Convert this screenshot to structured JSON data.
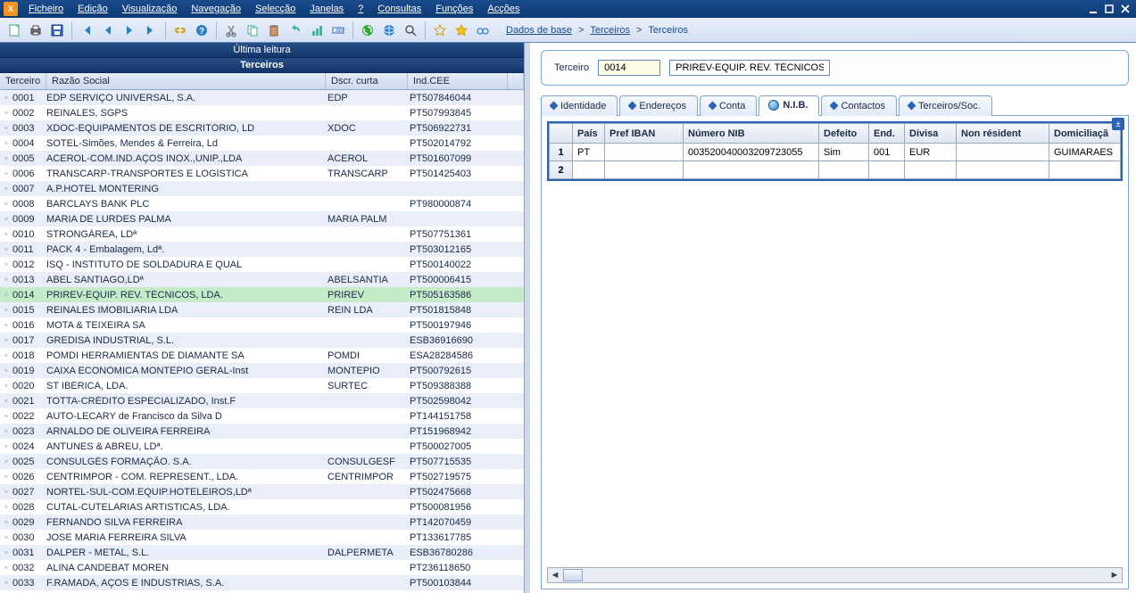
{
  "menu": {
    "items": [
      "Ficheiro",
      "Edição",
      "Visualização",
      "Navegação",
      "Selecção",
      "Janelas",
      "?",
      "Consultas",
      "Funções",
      "Acções"
    ]
  },
  "toolbar": {
    "icons": [
      {
        "name": "new-icon"
      },
      {
        "name": "print-icon"
      },
      {
        "name": "save-icon"
      },
      {
        "sep": true
      },
      {
        "name": "nav-first-icon"
      },
      {
        "name": "nav-prev-icon"
      },
      {
        "name": "nav-next-icon"
      },
      {
        "name": "nav-last-icon"
      },
      {
        "sep": true
      },
      {
        "name": "link-icon"
      },
      {
        "name": "help-icon"
      },
      {
        "sep": true
      },
      {
        "name": "cut-icon"
      },
      {
        "name": "copy-icon"
      },
      {
        "name": "paste-icon"
      },
      {
        "name": "undo-icon"
      },
      {
        "name": "chart-icon"
      },
      {
        "name": "field-icon"
      },
      {
        "sep": true
      },
      {
        "name": "refresh-green-icon"
      },
      {
        "name": "world-icon"
      },
      {
        "name": "search-icon"
      },
      {
        "sep": true
      },
      {
        "name": "star-outline-icon"
      },
      {
        "name": "star-fill-icon"
      },
      {
        "name": "glasses-icon"
      }
    ],
    "breadcrumb": [
      "Dados de base",
      "Terceiros",
      "Terceiros"
    ]
  },
  "leftPane": {
    "header1": "Última leitura",
    "header2": "Terceiros",
    "columns": {
      "id": "Terceiro",
      "name": "Razão Social",
      "dscr": "Dscr. curta",
      "cee": "Ind.CEE"
    },
    "selectedId": "0014",
    "rows": [
      {
        "id": "0001",
        "name": "EDP SERVIÇO UNIVERSAL, S.A.",
        "dscr": "EDP",
        "cee": "PT507846044"
      },
      {
        "id": "0002",
        "name": "REINALES, SGPS",
        "dscr": "",
        "cee": "PT507993845"
      },
      {
        "id": "0003",
        "name": "XDOC-EQUIPAMENTOS DE ESCRITÓRIO, LD",
        "dscr": "XDOC",
        "cee": "PT506922731"
      },
      {
        "id": "0004",
        "name": "SOTEL-Simões, Mendes & Ferreira, Ld",
        "dscr": "",
        "cee": "PT502014792"
      },
      {
        "id": "0005",
        "name": "ACEROL-COM.IND.AÇOS INOX.,UNIP.,LDA",
        "dscr": "ACEROL",
        "cee": "PT501607099"
      },
      {
        "id": "0006",
        "name": "TRANSCARP-TRANSPORTES E LOGÍSTICA",
        "dscr": "TRANSCARP",
        "cee": "PT501425403"
      },
      {
        "id": "0007",
        "name": "A.P.HOTEL MONTERING",
        "dscr": "",
        "cee": ""
      },
      {
        "id": "0008",
        "name": "BARCLAYS BANK PLC",
        "dscr": "",
        "cee": "PT980000874"
      },
      {
        "id": "0009",
        "name": "MARIA DE LURDES PALMA",
        "dscr": "MARIA PALM",
        "cee": ""
      },
      {
        "id": "0010",
        "name": "STRONGÁREA, LDª",
        "dscr": "",
        "cee": "PT507751361"
      },
      {
        "id": "0011",
        "name": "PACK  4 - Embalagem, Ldª.",
        "dscr": "",
        "cee": "PT503012165"
      },
      {
        "id": "0012",
        "name": "ISQ - INSTITUTO DE SOLDADURA E QUAL",
        "dscr": "",
        "cee": "PT500140022"
      },
      {
        "id": "0013",
        "name": "ABEL SANTIAGO,LDª",
        "dscr": "ABELSANTIA",
        "cee": "PT500006415"
      },
      {
        "id": "0014",
        "name": "PRIREV-EQUIP. REV. TÉCNICOS, LDA.",
        "dscr": "PRIREV",
        "cee": "PT505163586"
      },
      {
        "id": "0015",
        "name": "REINALES IMOBILIARIA LDA",
        "dscr": "REIN LDA",
        "cee": "PT501815848"
      },
      {
        "id": "0016",
        "name": "MOTA & TEIXEIRA SA",
        "dscr": "",
        "cee": "PT500197946"
      },
      {
        "id": "0017",
        "name": "GREDISA INDUSTRIAL, S.L.",
        "dscr": "",
        "cee": "ESB36916690"
      },
      {
        "id": "0018",
        "name": "POMDI HERRAMIENTAS DE DIAMANTE SA",
        "dscr": "POMDI",
        "cee": "ESA28284586"
      },
      {
        "id": "0019",
        "name": "CAIXA ECONÓMICA MONTEPIO GERAL-Inst",
        "dscr": "MONTEPIO",
        "cee": "PT500792615"
      },
      {
        "id": "0020",
        "name": "ST IBÉRICA, LDA.",
        "dscr": "SURTEC",
        "cee": "PT509388388"
      },
      {
        "id": "0021",
        "name": "TOTTA-CRÉDITO ESPECIALIZADO, Inst.F",
        "dscr": "",
        "cee": "PT502598042"
      },
      {
        "id": "0022",
        "name": "AUTO-LECARY de Francisco da Silva D",
        "dscr": "",
        "cee": "PT144151758"
      },
      {
        "id": "0023",
        "name": "ARNALDO DE OLIVEIRA FERREIRA",
        "dscr": "",
        "cee": "PT151968942"
      },
      {
        "id": "0024",
        "name": "ANTUNES & ABREU, LDª.",
        "dscr": "",
        "cee": "PT500027005"
      },
      {
        "id": "0025",
        "name": "CONSULGÉS FORMAÇÃO. S.A.",
        "dscr": "CONSULGESF",
        "cee": "PT507715535"
      },
      {
        "id": "0026",
        "name": "CENTRIMPOR - COM. REPRESENT., LDA.",
        "dscr": "CENTRIMPOR",
        "cee": "PT502719575"
      },
      {
        "id": "0027",
        "name": "NORTEL-SUL-COM.EQUIP.HOTELEIROS,LDª",
        "dscr": "",
        "cee": "PT502475668"
      },
      {
        "id": "0028",
        "name": "CUTAL-CUTELARIAS ARTISTICAS, LDA.",
        "dscr": "",
        "cee": "PT500081956"
      },
      {
        "id": "0029",
        "name": "FERNANDO SILVA FERREIRA",
        "dscr": "",
        "cee": "PT142070459"
      },
      {
        "id": "0030",
        "name": "JOSE MARIA FERREIRA SILVA",
        "dscr": "",
        "cee": "PT133617785"
      },
      {
        "id": "0031",
        "name": "DALPER - METAL, S.L.",
        "dscr": "DALPERMETA",
        "cee": "ESB36780286"
      },
      {
        "id": "0032",
        "name": "ALINA CANDEBAT MOREN",
        "dscr": "",
        "cee": "PT236118650"
      },
      {
        "id": "0033",
        "name": "F.RAMADA, AÇOS E INDUSTRIAS, S.A.",
        "dscr": "",
        "cee": "PT500103844"
      }
    ]
  },
  "rightPane": {
    "idLabel": "Terceiro",
    "code": "0014",
    "desc": "PRIREV-EQUIP. REV. TÉCNICOS,",
    "tabs": [
      {
        "label": "Identidade",
        "active": false
      },
      {
        "label": "Endereços",
        "active": false
      },
      {
        "label": "Conta",
        "active": false
      },
      {
        "label": "N.I.B.",
        "active": true,
        "globe": true
      },
      {
        "label": "Contactos",
        "active": false
      },
      {
        "label": "Terceiros/Soc.",
        "active": false
      }
    ],
    "grid": {
      "columns": [
        {
          "key": "pais",
          "label": "País",
          "width": 36
        },
        {
          "key": "prefiban",
          "label": "Pref IBAN",
          "width": 88
        },
        {
          "key": "nib",
          "label": "Número NIB",
          "width": 152
        },
        {
          "key": "defeito",
          "label": "Defeito",
          "width": 56
        },
        {
          "key": "end",
          "label": "End.",
          "width": 40
        },
        {
          "key": "divisa",
          "label": "Divisa",
          "width": 58
        },
        {
          "key": "nonres",
          "label": "Non résident",
          "width": 104
        },
        {
          "key": "domic",
          "label": "Domiciliaçã",
          "width": 80
        }
      ],
      "rows": [
        {
          "pais": "PT",
          "prefiban": "",
          "nib": "003520040003209723055",
          "defeito": "Sim",
          "end": "001",
          "divisa": "EUR",
          "nonres": "",
          "domic": "GUIMARAES"
        },
        {
          "pais": "",
          "prefiban": "",
          "nib": "",
          "defeito": "",
          "end": "",
          "divisa": "",
          "nonres": "",
          "domic": ""
        }
      ]
    }
  }
}
